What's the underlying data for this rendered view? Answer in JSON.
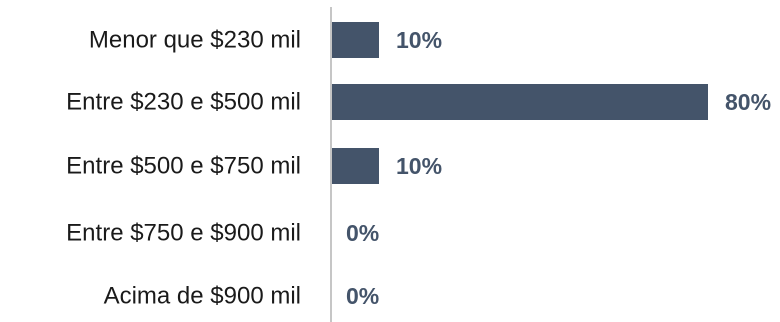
{
  "chart_data": {
    "type": "bar",
    "orientation": "horizontal",
    "title": "",
    "xlabel": "",
    "ylabel": "",
    "categories": [
      "Menor que $230 mil",
      "Entre $230 e $500 mil",
      "Entre $500 e $750 mil",
      "Entre $750 e $900 mil",
      "Acima de $900 mil"
    ],
    "values": [
      10,
      80,
      10,
      0,
      0
    ],
    "data_labels": [
      "10%",
      "80%",
      "10%",
      "0%",
      "0%"
    ],
    "unit": "%",
    "xlim": [
      0,
      80
    ],
    "grid": false,
    "legend": "none",
    "bar_color": "#44546a",
    "label_color": "#44546a",
    "axis_color": "#8c8c8c"
  }
}
